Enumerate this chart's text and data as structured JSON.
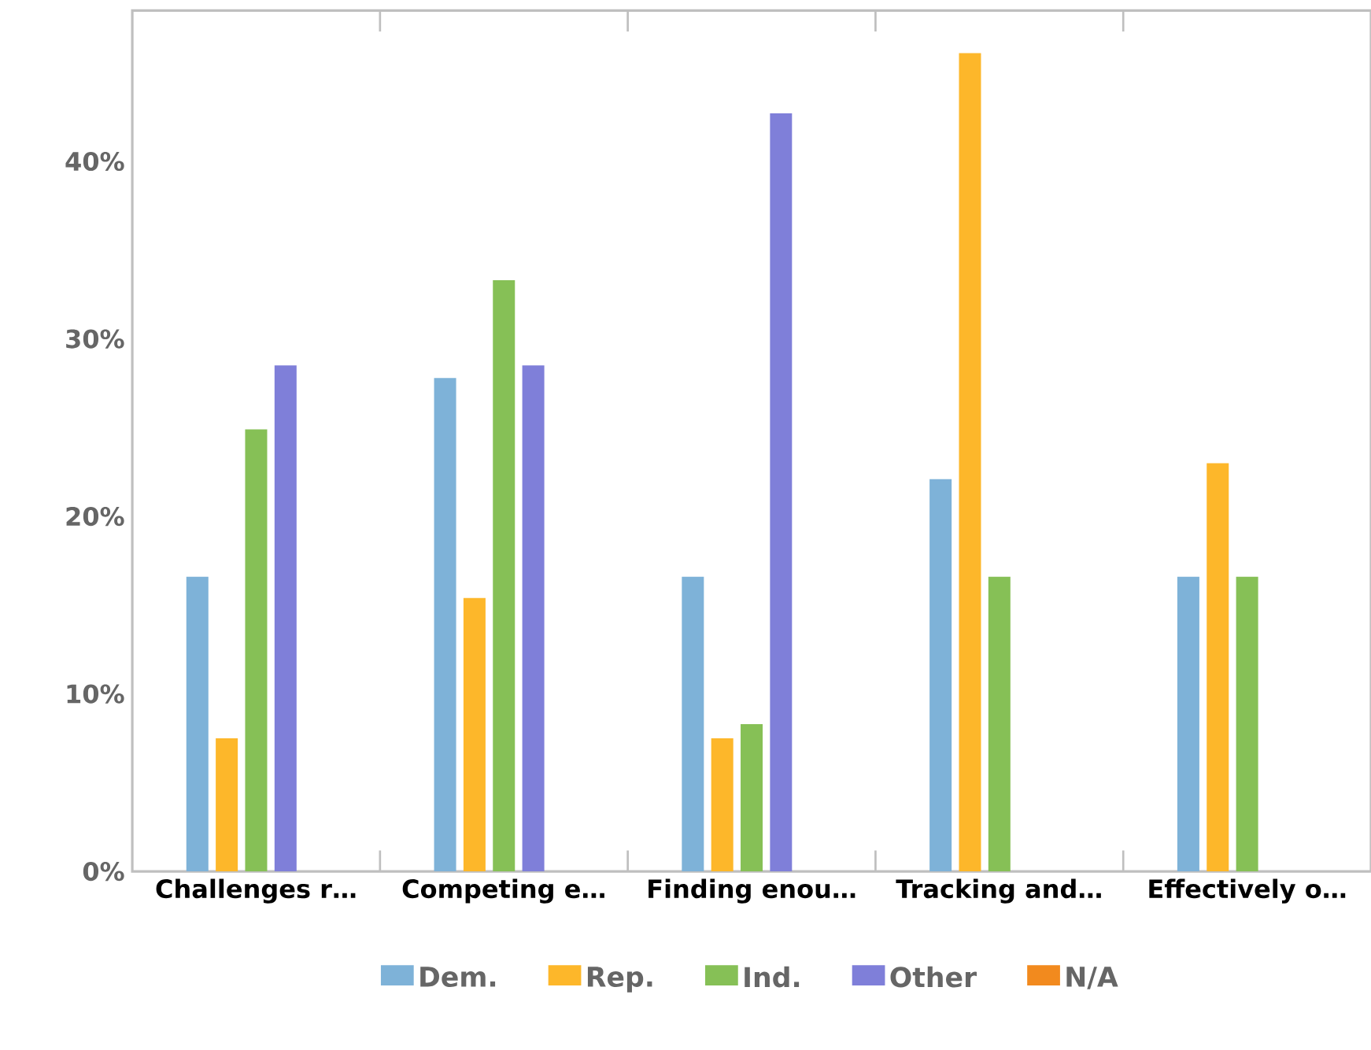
{
  "chart_data": {
    "type": "bar",
    "categories": [
      "Challenges r…",
      "Competing e…",
      "Finding enou…",
      "Tracking and…",
      "Effectively o…"
    ],
    "series": [
      {
        "name": "Dem.",
        "color": "#7eb2d8",
        "values": [
          16.6,
          27.8,
          16.6,
          22.1,
          16.6
        ]
      },
      {
        "name": "Rep.",
        "color": "#fdb72a",
        "values": [
          7.5,
          15.4,
          7.5,
          46.1,
          23.0
        ]
      },
      {
        "name": "Ind.",
        "color": "#86c056",
        "values": [
          24.9,
          33.3,
          8.3,
          16.6,
          16.6
        ]
      },
      {
        "name": "Other",
        "color": "#7f7fd9",
        "values": [
          28.5,
          28.5,
          42.7,
          null,
          null
        ]
      },
      {
        "name": "N/A",
        "color": "#f28a1e",
        "values": [
          null,
          null,
          null,
          null,
          null
        ]
      }
    ],
    "ylim": [
      0,
      48.5
    ],
    "yticks": [
      {
        "value": 0,
        "label": "0%"
      },
      {
        "value": 10,
        "label": "10%"
      },
      {
        "value": 20,
        "label": "20%"
      },
      {
        "value": 30,
        "label": "30%"
      },
      {
        "value": 40,
        "label": "40%"
      }
    ],
    "grid": false,
    "legend": "bottom"
  }
}
